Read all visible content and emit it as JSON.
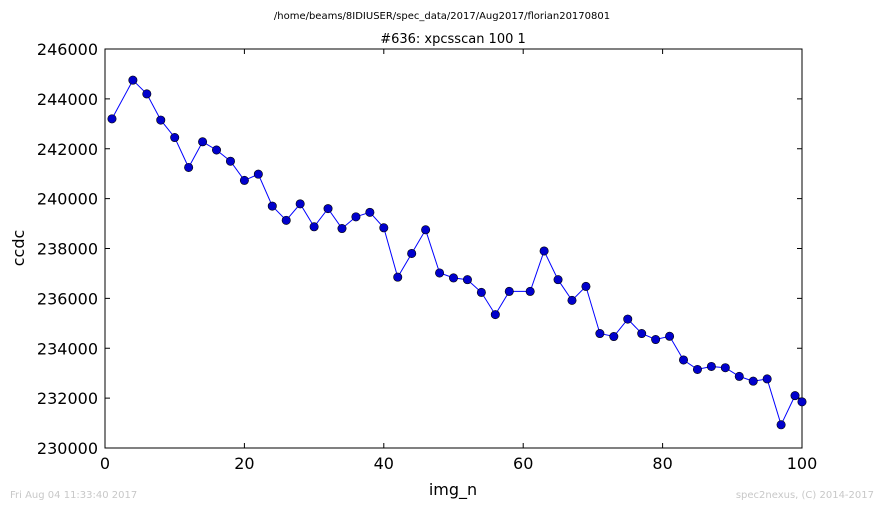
{
  "header": {
    "path": "/home/beams/8IDIUSER/spec_data/2017/Aug2017/florian20170801"
  },
  "footer": {
    "timestamp": "Fri Aug 04 11:33:40 2017",
    "credit": "spec2nexus, (C) 2014-2017"
  },
  "colors": {
    "series_line": "#0000ff",
    "marker_fill": "#0000cc"
  },
  "chart_data": {
    "type": "line",
    "title": "#636: xpcsscan 100 1",
    "xlabel": "img_n",
    "ylabel": "ccdc",
    "xlim": [
      0,
      100
    ],
    "ylim": [
      230000,
      246000
    ],
    "xticks": [
      "0",
      "20",
      "40",
      "60",
      "80",
      "100"
    ],
    "yticks": [
      "230000",
      "232000",
      "234000",
      "236000",
      "238000",
      "240000",
      "242000",
      "244000",
      "246000"
    ],
    "grid": false,
    "marker": "circle",
    "x": [
      1,
      4,
      6,
      8,
      10,
      12,
      14,
      16,
      18,
      20,
      22,
      24,
      26,
      28,
      30,
      32,
      34,
      36,
      38,
      40,
      42,
      44,
      46,
      48,
      50,
      52,
      54,
      56,
      58,
      61,
      63,
      65,
      67,
      69,
      71,
      73,
      75,
      77,
      79,
      81,
      83,
      85,
      87,
      89,
      91,
      93,
      95,
      97,
      99,
      100
    ],
    "y": [
      243200,
      244750,
      244200,
      243150,
      242450,
      241250,
      242280,
      241950,
      241500,
      240730,
      240980,
      239700,
      239130,
      239790,
      238870,
      239600,
      238800,
      239270,
      239450,
      238830,
      236850,
      237800,
      238750,
      237020,
      236820,
      236750,
      236240,
      235350,
      236280,
      236280,
      237900,
      236750,
      235920,
      236480,
      234590,
      234470,
      235170,
      234590,
      234350,
      234480,
      233530,
      233150,
      233270,
      233220,
      232870,
      232680,
      232770,
      230930,
      232100,
      231850
    ]
  }
}
